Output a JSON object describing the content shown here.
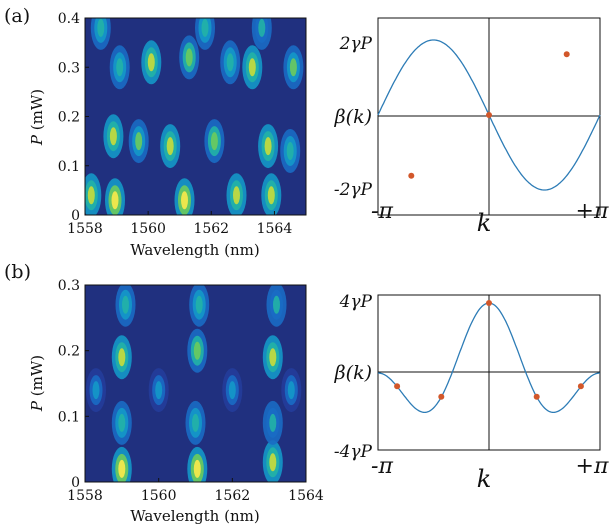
{
  "chart_data": [
    {
      "panel": "(a)",
      "type": "heatmap",
      "xlabel": "Wavelength (nm)",
      "ylabel_italic": "P",
      "ylabel_rest": " (mW)",
      "xlim": [
        1558,
        1565
      ],
      "ylim": [
        0,
        0.4
      ],
      "xticks": [
        1558,
        1560,
        1562,
        1564
      ],
      "yticks": [
        0,
        0.1,
        0.2,
        0.3,
        0.4
      ],
      "xtick_labels": [
        "1558",
        "1560",
        "1562",
        "1564"
      ],
      "ytick_labels": [
        "0",
        "0.1",
        "0.2",
        "0.3",
        "0.4"
      ],
      "colormap": [
        "#1e1e6e",
        "#233d9b",
        "#1a6cc4",
        "#1498c8",
        "#22b3a6",
        "#6ccb5c",
        "#c9db3a",
        "#fbe94a"
      ],
      "bright_spots": [
        {
          "x": 1558.2,
          "y": 0.04,
          "v": 0.85
        },
        {
          "x": 1558.95,
          "y": 0.03,
          "v": 1.0
        },
        {
          "x": 1561.15,
          "y": 0.03,
          "v": 0.95
        },
        {
          "x": 1562.8,
          "y": 0.04,
          "v": 0.9
        },
        {
          "x": 1563.9,
          "y": 0.04,
          "v": 0.85
        },
        {
          "x": 1558.9,
          "y": 0.16,
          "v": 0.8
        },
        {
          "x": 1559.7,
          "y": 0.15,
          "v": 0.7
        },
        {
          "x": 1560.7,
          "y": 0.14,
          "v": 0.9
        },
        {
          "x": 1562.1,
          "y": 0.15,
          "v": 0.75
        },
        {
          "x": 1563.8,
          "y": 0.14,
          "v": 0.85
        },
        {
          "x": 1564.5,
          "y": 0.13,
          "v": 0.6
        },
        {
          "x": 1559.1,
          "y": 0.3,
          "v": 0.6
        },
        {
          "x": 1560.1,
          "y": 0.31,
          "v": 0.8
        },
        {
          "x": 1561.3,
          "y": 0.32,
          "v": 0.75
        },
        {
          "x": 1562.6,
          "y": 0.31,
          "v": 0.6
        },
        {
          "x": 1563.3,
          "y": 0.3,
          "v": 0.8
        },
        {
          "x": 1564.6,
          "y": 0.3,
          "v": 0.7
        },
        {
          "x": 1558.5,
          "y": 0.38,
          "v": 0.55
        },
        {
          "x": 1561.8,
          "y": 0.38,
          "v": 0.6
        },
        {
          "x": 1563.6,
          "y": 0.38,
          "v": 0.5
        }
      ]
    },
    {
      "panel": "(a)",
      "type": "line",
      "function": "2*sin(k)",
      "xlim": [
        -3.14159,
        3.14159
      ],
      "ylim": [
        -2.0,
        2.0
      ],
      "xlabel": "k",
      "ylabel": "β(k)",
      "ytick_labels_top": "2γP",
      "ytick_labels_bottom": "-2γP",
      "xtick_left": "-π",
      "xtick_right": "+π",
      "line_color": "#2d7cb6",
      "marker_color": "#d2572a",
      "markers": [
        {
          "k": -2.2,
          "beta": -1.62
        },
        {
          "k": 0,
          "beta": 0
        },
        {
          "k": 2.2,
          "beta": 1.62
        }
      ]
    },
    {
      "panel": "(b)",
      "type": "heatmap",
      "xlabel": "Wavelength (nm)",
      "ylabel_italic": "P",
      "ylabel_rest": " (mW)",
      "xlim": [
        1558,
        1564
      ],
      "ylim": [
        0,
        0.3
      ],
      "xticks": [
        1558,
        1560,
        1562,
        1564
      ],
      "yticks": [
        0,
        0.1,
        0.2,
        0.3
      ],
      "xtick_labels": [
        "1558",
        "1560",
        "1562",
        "1564"
      ],
      "ytick_labels": [
        "0",
        "0.1",
        "0.2",
        "0.3"
      ],
      "colormap": [
        "#1e1e6e",
        "#233d9b",
        "#1a6cc4",
        "#1498c8",
        "#22b3a6",
        "#6ccb5c",
        "#c9db3a",
        "#fbe94a"
      ],
      "bright_spots": [
        {
          "x": 1559.0,
          "y": 0.02,
          "v": 1.0
        },
        {
          "x": 1561.05,
          "y": 0.02,
          "v": 0.95
        },
        {
          "x": 1563.1,
          "y": 0.03,
          "v": 0.9
        },
        {
          "x": 1559.0,
          "y": 0.09,
          "v": 0.55
        },
        {
          "x": 1561.0,
          "y": 0.09,
          "v": 0.55
        },
        {
          "x": 1563.1,
          "y": 0.09,
          "v": 0.5
        },
        {
          "x": 1559.0,
          "y": 0.19,
          "v": 0.85
        },
        {
          "x": 1561.05,
          "y": 0.2,
          "v": 0.75
        },
        {
          "x": 1563.1,
          "y": 0.19,
          "v": 0.8
        },
        {
          "x": 1558.3,
          "y": 0.14,
          "v": 0.45
        },
        {
          "x": 1560.0,
          "y": 0.14,
          "v": 0.45
        },
        {
          "x": 1562.0,
          "y": 0.14,
          "v": 0.45
        },
        {
          "x": 1563.6,
          "y": 0.14,
          "v": 0.4
        },
        {
          "x": 1559.1,
          "y": 0.27,
          "v": 0.55
        },
        {
          "x": 1561.1,
          "y": 0.27,
          "v": 0.55
        },
        {
          "x": 1563.2,
          "y": 0.27,
          "v": 0.5
        }
      ]
    },
    {
      "panel": "(b)",
      "type": "line",
      "function": "cos(k)+cos(2k)",
      "xlim": [
        -3.14159,
        3.14159
      ],
      "ylim": [
        -2.0,
        2.0
      ],
      "xlabel": "k",
      "ylabel": "β(k)",
      "ytick_labels_top": "4γP",
      "ytick_labels_bottom": "-4γP",
      "xtick_left": "-π",
      "xtick_right": "+π",
      "line_color": "#2d7cb6",
      "marker_color": "#d2572a",
      "markers": [
        {
          "k": -2.6,
          "beta": -0.38
        },
        {
          "k": -1.35,
          "beta": -0.68
        },
        {
          "k": 0,
          "beta": 2.0
        },
        {
          "k": 1.35,
          "beta": -0.68
        },
        {
          "k": 2.6,
          "beta": -0.38
        }
      ]
    }
  ],
  "labels": {
    "panel_a": "(a)",
    "panel_b": "(b)"
  }
}
